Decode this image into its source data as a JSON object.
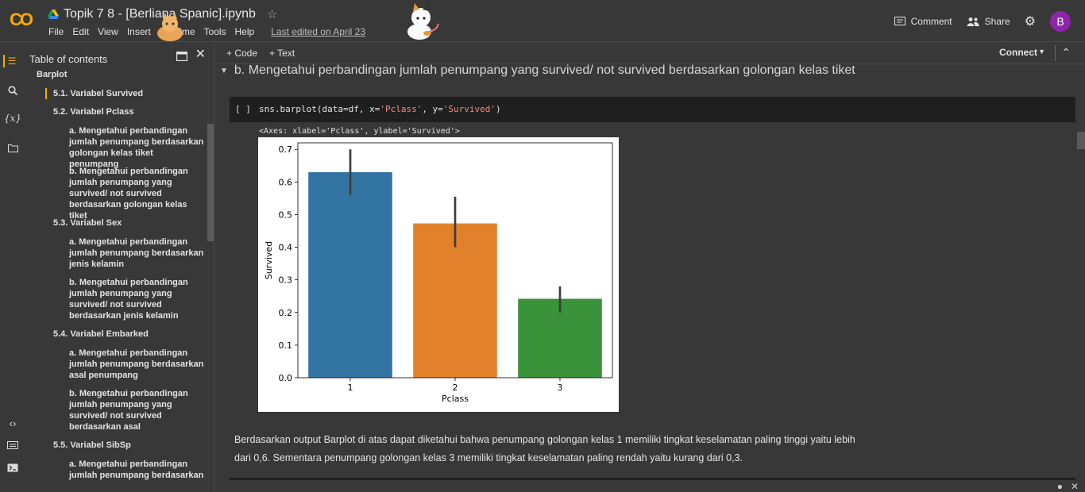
{
  "header": {
    "logo": "CO",
    "title": "Topik 7 8 - [Berliana Spanic].ipynb",
    "menus": [
      "File",
      "Edit",
      "View",
      "Insert",
      "Runtime",
      "Tools",
      "Help"
    ],
    "last_edited": "Last edited on April 23",
    "comment_label": "Comment",
    "share_label": "Share",
    "avatar_letter": "B"
  },
  "toc": {
    "title": "Table of contents",
    "items": [
      {
        "label": "Barplot",
        "level": 0
      },
      {
        "label": "5.1. Variabel Survived",
        "level": 1,
        "selected": true
      },
      {
        "label": "5.2. Variabel Pclass",
        "level": 1
      },
      {
        "label": "a. Mengetahui perbandingan jumlah penumpang berdasarkan golongan kelas tiket penumpang",
        "level": 2
      },
      {
        "label": "b. Mengetahui perbandingan jumlah penumpang yang survived/ not survived berdasarkan golongan kelas tiket",
        "level": 2
      },
      {
        "label": "5.3. Variabel Sex",
        "level": 1
      },
      {
        "label": "a. Mengetahui perbandingan jumlah penumpang berdasarkan jenis kelamin",
        "level": 2
      },
      {
        "label": "b. Mengetahui perbandingan jumlah penumpang yang survived/ not survived berdasarkan jenis kelamin",
        "level": 2
      },
      {
        "label": "5.4. Variabel Embarked",
        "level": 1
      },
      {
        "label": "a. Mengetahui perbandingan jumlah penumpang berdasarkan asal penumpang",
        "level": 2
      },
      {
        "label": "b. Mengetahui perbandingan jumlah penumpang yang survived/ not survived berdasarkan asal",
        "level": 2
      },
      {
        "label": "5.5. Variabel SibSp",
        "level": 1
      },
      {
        "label": "a. Mengetahui perbandingan jumlah penumpang berdasarkan",
        "level": 2
      }
    ]
  },
  "toolbar": {
    "code_label": "+ Code",
    "text_label": "+ Text",
    "connect_label": "Connect"
  },
  "section": {
    "title": "b. Mengetahui perbandingan jumlah penumpang yang survived/ not survived berdasarkan golongan kelas tiket"
  },
  "cell": {
    "run_label": "[ ]",
    "code_prefix": "sns.barplot(data=df, x=",
    "code_x": "'Pclass'",
    "code_mid": ", y=",
    "code_y": "'Survived'",
    "code_suffix": ")",
    "output_text": "<Axes: xlabel='Pclass', ylabel='Survived'>"
  },
  "chart_data": {
    "type": "bar",
    "categories": [
      "1",
      "2",
      "3"
    ],
    "values": [
      0.63,
      0.473,
      0.242
    ],
    "error_low": [
      0.56,
      0.4,
      0.2
    ],
    "error_high": [
      0.7,
      0.555,
      0.28
    ],
    "colors": [
      "#3274a1",
      "#e1812c",
      "#3a923a"
    ],
    "xlabel": "Pclass",
    "ylabel": "Survived",
    "ylim": [
      0,
      0.72
    ],
    "yticks": [
      0.0,
      0.1,
      0.2,
      0.3,
      0.4,
      0.5,
      0.6,
      0.7
    ],
    "ytick_labels": [
      "0.0",
      "0.1",
      "0.2",
      "0.3",
      "0.4",
      "0.5",
      "0.6",
      "0.7"
    ]
  },
  "description": {
    "line1": "Berdasarkan output Barplot di atas dapat diketahui bahwa penumpang golongan kelas 1 memiliki tingkat keselamatan paling tinggi yaitu lebih",
    "line2": "dari 0,6. Sementara penumpang golongan kelas 3 memiliki tingkat keselamatan paling rendah yaitu kurang dari 0,3."
  }
}
